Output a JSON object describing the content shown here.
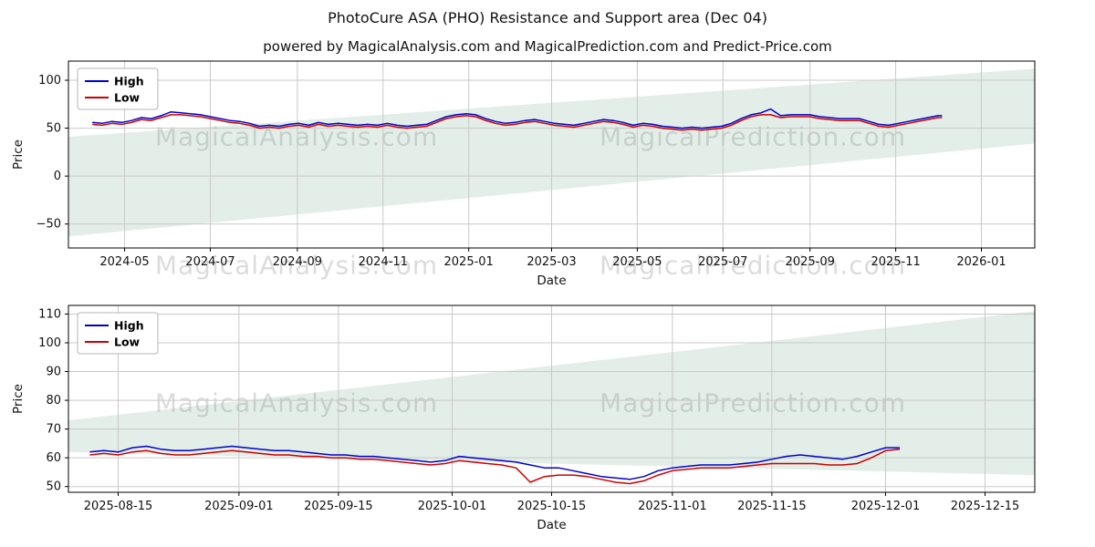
{
  "page": {
    "title": "PhotoCure ASA (PHO) Resistance and Support area (Dec 04)",
    "subtitle": "powered by MagicalAnalysis.com and MagicalPrediction.com and Predict-Price.com"
  },
  "watermarks": {
    "left": "MagicalAnalysis.com",
    "right": "MagicalPrediction.com"
  },
  "colors": {
    "high": "#0000cc",
    "low": "#cc0000",
    "band": "rgba(96,160,120,0.18)",
    "grid": "#c9c9c9",
    "axis": "#000000"
  },
  "chart_data": [
    {
      "type": "line",
      "title": "",
      "xlabel": "Date",
      "ylabel": "Price",
      "legend": [
        "High",
        "Low"
      ],
      "legend_loc": "upper left",
      "grid": true,
      "xlim": [
        "2024-03-22",
        "2026-02-08"
      ],
      "ylim": [
        -75,
        120
      ],
      "yticks": [
        -50,
        0,
        50,
        100
      ],
      "ytick_labels": [
        "−50",
        "0",
        "50",
        "100"
      ],
      "xticks": [
        "2024-05",
        "2024-07",
        "2024-09",
        "2024-11",
        "2025-01",
        "2025-03",
        "2025-05",
        "2025-07",
        "2025-09",
        "2025-11",
        "2026-01"
      ],
      "x": [
        "2024-04-08",
        "2024-04-15",
        "2024-04-22",
        "2024-04-29",
        "2024-05-06",
        "2024-05-13",
        "2024-05-20",
        "2024-05-27",
        "2024-06-03",
        "2024-06-10",
        "2024-06-17",
        "2024-06-24",
        "2024-07-01",
        "2024-07-08",
        "2024-07-15",
        "2024-07-22",
        "2024-07-29",
        "2024-08-05",
        "2024-08-12",
        "2024-08-19",
        "2024-08-26",
        "2024-09-02",
        "2024-09-09",
        "2024-09-16",
        "2024-09-23",
        "2024-09-30",
        "2024-10-07",
        "2024-10-14",
        "2024-10-21",
        "2024-10-28",
        "2024-11-04",
        "2024-11-11",
        "2024-11-18",
        "2024-11-25",
        "2024-12-02",
        "2024-12-09",
        "2024-12-16",
        "2024-12-23",
        "2024-12-30",
        "2025-01-06",
        "2025-01-13",
        "2025-01-20",
        "2025-01-27",
        "2025-02-03",
        "2025-02-10",
        "2025-02-17",
        "2025-02-24",
        "2025-03-03",
        "2025-03-10",
        "2025-03-17",
        "2025-03-24",
        "2025-03-31",
        "2025-04-07",
        "2025-04-14",
        "2025-04-21",
        "2025-04-28",
        "2025-05-05",
        "2025-05-12",
        "2025-05-19",
        "2025-05-26",
        "2025-06-02",
        "2025-06-09",
        "2025-06-16",
        "2025-06-23",
        "2025-06-30",
        "2025-07-07",
        "2025-07-14",
        "2025-07-21",
        "2025-07-28",
        "2025-08-04",
        "2025-08-11",
        "2025-08-18",
        "2025-08-25",
        "2025-09-01",
        "2025-09-08",
        "2025-09-15",
        "2025-09-22",
        "2025-09-29",
        "2025-10-06",
        "2025-10-13",
        "2025-10-20",
        "2025-10-27",
        "2025-11-03",
        "2025-11-10",
        "2025-11-17",
        "2025-11-24",
        "2025-12-01",
        "2025-12-04"
      ],
      "series": [
        {
          "name": "High",
          "color_key": "high",
          "values": [
            56,
            55,
            57,
            56,
            58,
            61,
            60,
            63,
            67,
            66,
            65,
            64,
            62,
            60,
            58,
            57,
            55,
            52,
            53,
            52,
            54,
            55,
            53,
            56,
            54,
            55,
            54,
            53,
            54,
            53,
            55,
            53,
            52,
            53,
            54,
            58,
            62,
            64,
            65,
            64,
            60,
            57,
            55,
            56,
            58,
            59,
            57,
            55,
            54,
            53,
            55,
            57,
            59,
            58,
            56,
            53,
            55,
            54,
            52,
            51,
            50,
            51,
            50,
            51,
            52,
            55,
            60,
            64,
            66,
            70,
            63,
            64,
            64,
            64,
            62,
            61,
            60,
            60,
            60,
            57,
            54,
            53,
            55,
            57,
            59,
            61,
            63,
            63
          ]
        },
        {
          "name": "Low",
          "color_key": "low",
          "values": [
            54,
            53,
            55,
            54,
            56,
            59,
            58,
            61,
            64,
            64,
            63,
            62,
            60,
            58,
            56,
            55,
            53,
            50,
            51,
            50,
            52,
            53,
            51,
            54,
            52,
            53,
            52,
            51,
            52,
            51,
            53,
            51,
            50,
            51,
            52,
            56,
            60,
            62,
            63,
            62,
            58,
            55,
            53,
            54,
            56,
            57,
            55,
            53,
            52,
            51,
            53,
            55,
            57,
            56,
            54,
            51,
            53,
            52,
            50,
            49,
            48,
            49,
            48,
            49,
            50,
            53,
            58,
            62,
            64,
            64,
            61,
            62,
            62,
            62,
            60,
            59,
            58,
            58,
            58,
            55,
            52,
            51,
            53,
            55,
            57,
            59,
            61,
            61
          ]
        }
      ],
      "support_resistance_band": {
        "x": [
          "2024-03-22",
          "2026-02-08"
        ],
        "lower": [
          -63,
          34
        ],
        "upper": [
          41,
          112
        ]
      }
    },
    {
      "type": "line",
      "title": "",
      "xlabel": "Date",
      "ylabel": "Price",
      "legend": [
        "High",
        "Low"
      ],
      "legend_loc": "upper left",
      "grid": true,
      "xlim": [
        "2025-08-08",
        "2025-12-22"
      ],
      "ylim": [
        48,
        113
      ],
      "yticks": [
        50,
        60,
        70,
        80,
        90,
        100,
        110
      ],
      "ytick_labels": [
        "50",
        "60",
        "70",
        "80",
        "90",
        "100",
        "110"
      ],
      "xticks": [
        "2025-08-15",
        "2025-09-01",
        "2025-09-15",
        "2025-10-01",
        "2025-10-15",
        "2025-11-01",
        "2025-11-15",
        "2025-12-01",
        "2025-12-15"
      ],
      "x": [
        "2025-08-11",
        "2025-08-13",
        "2025-08-15",
        "2025-08-17",
        "2025-08-19",
        "2025-08-21",
        "2025-08-23",
        "2025-08-25",
        "2025-08-27",
        "2025-08-29",
        "2025-08-31",
        "2025-09-02",
        "2025-09-04",
        "2025-09-06",
        "2025-09-08",
        "2025-09-10",
        "2025-09-12",
        "2025-09-14",
        "2025-09-16",
        "2025-09-18",
        "2025-09-20",
        "2025-09-22",
        "2025-09-24",
        "2025-09-26",
        "2025-09-28",
        "2025-09-30",
        "2025-10-02",
        "2025-10-04",
        "2025-10-06",
        "2025-10-08",
        "2025-10-10",
        "2025-10-12",
        "2025-10-14",
        "2025-10-16",
        "2025-10-18",
        "2025-10-20",
        "2025-10-22",
        "2025-10-24",
        "2025-10-26",
        "2025-10-28",
        "2025-10-30",
        "2025-11-01",
        "2025-11-03",
        "2025-11-05",
        "2025-11-07",
        "2025-11-09",
        "2025-11-11",
        "2025-11-13",
        "2025-11-15",
        "2025-11-17",
        "2025-11-19",
        "2025-11-21",
        "2025-11-23",
        "2025-11-25",
        "2025-11-27",
        "2025-11-29",
        "2025-12-01",
        "2025-12-03"
      ],
      "series": [
        {
          "name": "High",
          "color_key": "high",
          "values": [
            62,
            62.5,
            62,
            63.5,
            64,
            63,
            62.5,
            62.5,
            63,
            63.5,
            64,
            63.5,
            63,
            62.5,
            62.5,
            62,
            61.5,
            61,
            61,
            60.5,
            60.5,
            60,
            59.5,
            59,
            58.5,
            59,
            60.5,
            60,
            59.5,
            59,
            58.5,
            57.5,
            56.5,
            56.5,
            55.5,
            54.5,
            53.5,
            53,
            52.5,
            53.5,
            55.5,
            56.5,
            57,
            57.5,
            57.5,
            57.5,
            58,
            58.5,
            59.5,
            60.5,
            61,
            60.5,
            60,
            59.5,
            60.5,
            62,
            63.5,
            63.5
          ]
        },
        {
          "name": "Low",
          "color_key": "low",
          "values": [
            61,
            61.5,
            61,
            62,
            62.5,
            61.5,
            61,
            61,
            61.5,
            62,
            62.5,
            62,
            61.5,
            61,
            61,
            60.5,
            60.5,
            60,
            60,
            59.5,
            59.5,
            59,
            58.5,
            58,
            57.5,
            58,
            59,
            58.5,
            58,
            57.5,
            56.5,
            51.5,
            53.5,
            54,
            54,
            53.5,
            52.5,
            51.5,
            51,
            52,
            54,
            55.5,
            56,
            56.5,
            56.5,
            56.5,
            57,
            57.5,
            58,
            58,
            58,
            58,
            57.5,
            57.5,
            58,
            60,
            62.5,
            63
          ]
        }
      ],
      "support_resistance_band": {
        "x": [
          "2025-08-08",
          "2025-12-22"
        ],
        "lower": [
          62,
          54
        ],
        "upper": [
          73,
          111
        ]
      }
    }
  ]
}
